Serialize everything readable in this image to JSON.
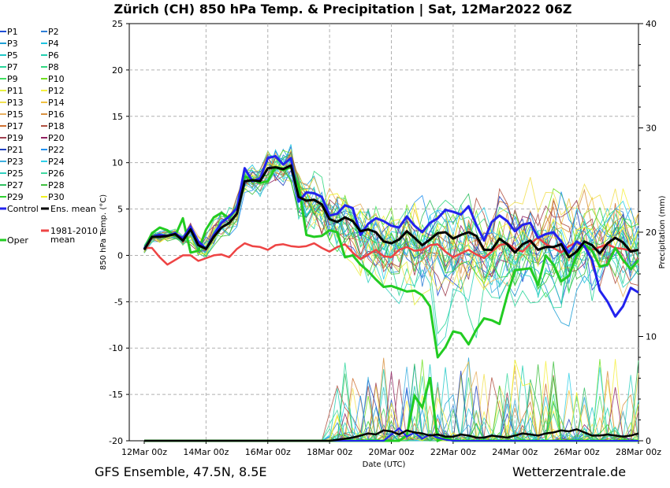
{
  "chart_data": {
    "type": "line",
    "title": "Zürich  (CH)  850 hPa Temp. & Precipitation | Sat, 12Mar2022 06Z",
    "xlabel": "Date (UTC)",
    "ylabel": "850 hPa Temp. (°C)",
    "ylabel_right": "Precipitation (mm)",
    "ylim": [
      -20,
      25
    ],
    "ylim_right": [
      0,
      40
    ],
    "yticks": [
      25,
      20,
      15,
      10,
      5,
      0,
      -5,
      -10,
      -15,
      -20
    ],
    "yticks_right": [
      40,
      30,
      20,
      10,
      0
    ],
    "x_range_hours": [
      0,
      384
    ],
    "xticks": [
      {
        "hour": 0,
        "label": "12Mar 00z"
      },
      {
        "hour": 48,
        "label": "14Mar 00z"
      },
      {
        "hour": 96,
        "label": "16Mar 00z"
      },
      {
        "hour": 144,
        "label": "18Mar 00z"
      },
      {
        "hour": 192,
        "label": "20Mar 00z"
      },
      {
        "hour": 240,
        "label": "22Mar 00z"
      },
      {
        "hour": 288,
        "label": "24Mar 00z"
      },
      {
        "hour": 336,
        "label": "26Mar 00z"
      },
      {
        "hour": 384,
        "label": "28Mar 00z"
      }
    ],
    "step_hours": 6,
    "legend": {
      "members": [
        {
          "name": "P1",
          "color": "#1f4fd6"
        },
        {
          "name": "P2",
          "color": "#2f7fd6"
        },
        {
          "name": "P3",
          "color": "#1fa0d6"
        },
        {
          "name": "P4",
          "color": "#1fc4e0"
        },
        {
          "name": "P5",
          "color": "#20c8c8"
        },
        {
          "name": "P6",
          "color": "#22d0b0"
        },
        {
          "name": "P7",
          "color": "#2ad69a"
        },
        {
          "name": "P8",
          "color": "#30d880"
        },
        {
          "name": "P9",
          "color": "#40e060"
        },
        {
          "name": "P10",
          "color": "#70e020"
        },
        {
          "name": "P11",
          "color": "#e8f040"
        },
        {
          "name": "P12",
          "color": "#f6f040"
        },
        {
          "name": "P13",
          "color": "#f2e050"
        },
        {
          "name": "P14",
          "color": "#f0c040"
        },
        {
          "name": "P15",
          "color": "#e8b060"
        },
        {
          "name": "P16",
          "color": "#d89040"
        },
        {
          "name": "P17",
          "color": "#d07030"
        },
        {
          "name": "P18",
          "color": "#b05040"
        },
        {
          "name": "P19",
          "color": "#a04050"
        },
        {
          "name": "P20",
          "color": "#902060"
        },
        {
          "name": "P21",
          "color": "#2040c0"
        },
        {
          "name": "P22",
          "color": "#2090f0"
        },
        {
          "name": "P23",
          "color": "#40b0e0"
        },
        {
          "name": "P24",
          "color": "#30d0e8"
        },
        {
          "name": "P25",
          "color": "#30d0c0"
        },
        {
          "name": "P26",
          "color": "#40d8a0"
        },
        {
          "name": "P27",
          "color": "#30c060"
        },
        {
          "name": "P28",
          "color": "#40c040"
        },
        {
          "name": "P29",
          "color": "#30d030"
        },
        {
          "name": "P30",
          "color": "#f0f020"
        }
      ],
      "control_label": "Control",
      "ens_mean_label": "Ens. mean",
      "oper_label": "Oper",
      "climate_label_line1": "1981-2010",
      "climate_label_line2": "mean"
    },
    "series_styles": {
      "control": "#2222ee",
      "ens_mean": "#000000",
      "oper": "#22cc22",
      "climate_mean": "#ee4444"
    },
    "series": [
      {
        "name": "Control",
        "values": [
          0.7,
          2,
          2.2,
          2.1,
          2.4,
          1.8,
          3.1,
          1.5,
          0.7,
          2.2,
          3.5,
          4.2,
          5.1,
          9.4,
          8,
          8.3,
          10.5,
          10.7,
          9.8,
          10.5,
          5.8,
          6.8,
          6.7,
          6.3,
          4.3,
          4.5,
          5.4,
          5.1,
          2.2,
          3.4,
          4,
          3.7,
          3.2,
          3,
          4.2,
          3.2,
          2.5,
          3.5,
          4,
          4.9,
          4.7,
          4.4,
          5.3,
          3.3,
          1.6,
          3.6,
          4.3,
          3.7,
          2.6,
          3.3,
          3.5,
          1.9,
          2.3,
          2.5,
          1.5,
          0.3,
          1.5,
          1,
          -0.5,
          -3.8,
          -5,
          -6.6,
          -5.5,
          -3.5,
          -4
        ]
      },
      {
        "name": "Ens. mean",
        "values": [
          0.6,
          2,
          2,
          2.1,
          2.3,
          1.6,
          2.8,
          1.1,
          0.7,
          2,
          3,
          3.5,
          4.5,
          8,
          8.1,
          8,
          9.4,
          9.5,
          9.3,
          9.7,
          6.3,
          5.9,
          6,
          5.5,
          3.9,
          3.6,
          4.1,
          3.7,
          2.6,
          2.8,
          2.5,
          1.5,
          1.3,
          1.7,
          2.6,
          1.9,
          1.1,
          1.7,
          2.4,
          2.5,
          1.8,
          2.2,
          2.5,
          2.1,
          0.6,
          0.6,
          1.8,
          1.2,
          0.3,
          1.2,
          1.6,
          0.6,
          0.9,
          0.9,
          1.2,
          -0.2,
          0.4,
          1.5,
          1.1,
          0.2,
          1.3,
          1.9,
          1.4,
          0.4,
          0.6
        ]
      },
      {
        "name": "Oper",
        "values": [
          0.7,
          2.4,
          3,
          2.7,
          2.1,
          4,
          0.3,
          0.5,
          2.8,
          4.1,
          4.6,
          4,
          5.2,
          8.5,
          8.2,
          7.8,
          8,
          9.5,
          9.2,
          9.5,
          7.5,
          2.2,
          2,
          2.1,
          2.7,
          2.5,
          -0.2,
          0,
          -1,
          -1.7,
          -2.6,
          -3.4,
          -3.3,
          -3.6,
          -3.9,
          -3.8,
          -4.3,
          -5.5,
          -11,
          -9.9,
          -8.2,
          -8.4,
          -9.6,
          -8,
          -6.8,
          -7,
          -7.4,
          -4.3,
          -1.6,
          -1.5,
          -1.4,
          -3.2,
          0,
          -1,
          -2.8,
          -2.2,
          0,
          1.2,
          0.5,
          -1.2,
          -1,
          0.8,
          -0.5,
          -1.5,
          -0.5
        ]
      },
      {
        "name": "1981-2010 mean",
        "values": [
          0.8,
          0.8,
          -0.2,
          -1,
          -0.5,
          0,
          0,
          -0.6,
          -0.3,
          0,
          0.1,
          -0.2,
          0.7,
          1.3,
          1,
          0.9,
          0.6,
          1.1,
          1.2,
          1,
          0.9,
          1,
          1.3,
          0.8,
          0.4,
          0.9,
          1.2,
          0.3,
          -0.4,
          0.1,
          0.6,
          -0.1,
          -0.2,
          0.6,
          0.9,
          0.5,
          0.6,
          1.1,
          1.2,
          0.4,
          -0.2,
          0.2,
          0.6,
          0.1,
          -0.3,
          0.4,
          1.1,
          1.3,
          0.7,
          0.4,
          1.3,
          1.9,
          1.2,
          0.8,
          0.3,
          1,
          1.4,
          0.9,
          0.6,
          0.9,
          1.2,
          0.8,
          0.7,
          0.5,
          0.6
        ]
      }
    ],
    "precip_series": [
      {
        "name": "Oper",
        "values": [
          0,
          0,
          0,
          0,
          0,
          0,
          0,
          0,
          0,
          0,
          0,
          0,
          0,
          0,
          0,
          0,
          0,
          0,
          0,
          0,
          0,
          0,
          0,
          0,
          0,
          0,
          0,
          0,
          0,
          0,
          0,
          0,
          0,
          0,
          0.5,
          4.3,
          3.2,
          6.1,
          0,
          0.3,
          0,
          0,
          0,
          0,
          0,
          0,
          0,
          0,
          0,
          0,
          0,
          0,
          0,
          0,
          0,
          0,
          0,
          0,
          0,
          0,
          0,
          0,
          0,
          0,
          0
        ]
      },
      {
        "name": "Control",
        "values": [
          0,
          0,
          0,
          0,
          0,
          0,
          0,
          0,
          0,
          0,
          0,
          0,
          0,
          0,
          0,
          0,
          0,
          0,
          0,
          0,
          0,
          0,
          0,
          0,
          0,
          0,
          0,
          0,
          0,
          0,
          0,
          0,
          0.6,
          1.2,
          0.4,
          0.8,
          0.2,
          0.6,
          0.3,
          0.1,
          0,
          0,
          0,
          0,
          0,
          0,
          0,
          0,
          0,
          0,
          0,
          0,
          0,
          0,
          0,
          0,
          0,
          0,
          0,
          0,
          0,
          0,
          0,
          0,
          0
        ]
      },
      {
        "name": "Ens. mean",
        "values": [
          0,
          0,
          0,
          0,
          0,
          0,
          0,
          0,
          0,
          0,
          0,
          0,
          0,
          0,
          0,
          0,
          0,
          0,
          0,
          0,
          0,
          0,
          0,
          0,
          0,
          0.1,
          0.2,
          0.3,
          0.5,
          0.7,
          0.6,
          1,
          0.9,
          0.6,
          1,
          0.8,
          0.7,
          0.5,
          0.6,
          0.4,
          0.4,
          0.6,
          0.5,
          0.3,
          0.3,
          0.5,
          0.4,
          0.3,
          0.5,
          0.7,
          0.6,
          0.5,
          0.7,
          0.8,
          1,
          0.9,
          1.1,
          0.8,
          0.5,
          0.5,
          0.6,
          0.5,
          0.4,
          0.5,
          0.7
        ]
      }
    ],
    "footer_left": "GFS Ensemble, 47.5N, 8.5E",
    "footer_right": "Wetterzentrale.de"
  }
}
